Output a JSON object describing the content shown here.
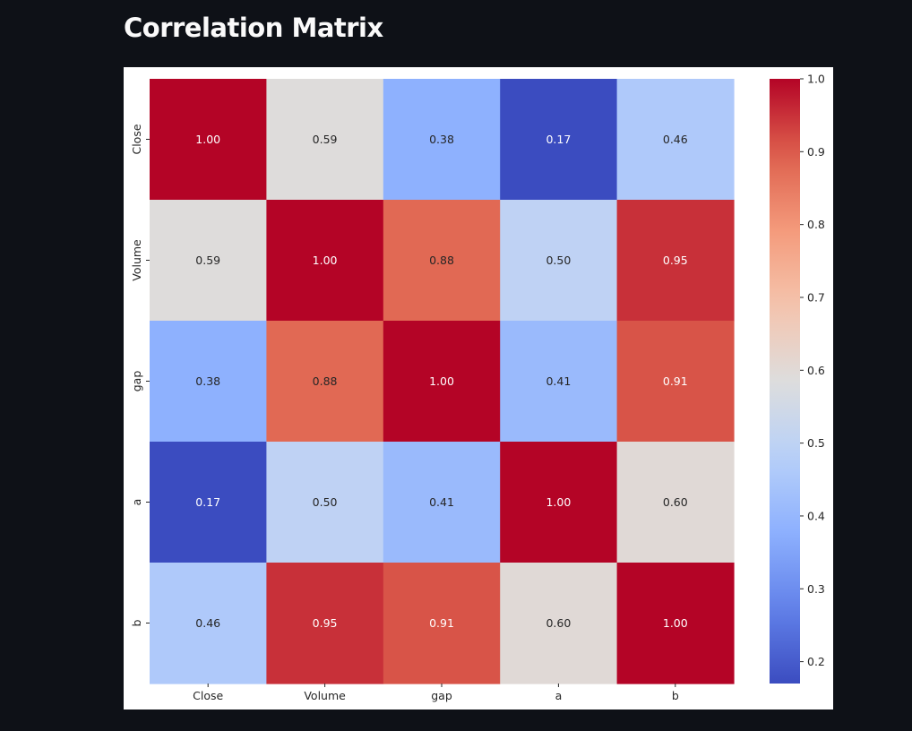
{
  "page": {
    "title": "Correlation Matrix"
  },
  "chart_data": {
    "type": "heatmap",
    "title": "",
    "xlabel": "",
    "ylabel": "",
    "x_categories": [
      "Close",
      "Volume",
      "gap",
      "a",
      "b"
    ],
    "y_categories": [
      "Close",
      "Volume",
      "gap",
      "a",
      "b"
    ],
    "values": [
      [
        1.0,
        0.59,
        0.38,
        0.17,
        0.46
      ],
      [
        0.59,
        1.0,
        0.88,
        0.5,
        0.95
      ],
      [
        0.38,
        0.88,
        1.0,
        0.41,
        0.91
      ],
      [
        0.17,
        0.5,
        0.41,
        1.0,
        0.6
      ],
      [
        0.46,
        0.95,
        0.91,
        0.6,
        1.0
      ]
    ],
    "value_labels": [
      [
        "1.00",
        "0.59",
        "0.38",
        "0.17",
        "0.46"
      ],
      [
        "0.59",
        "1.00",
        "0.88",
        "0.50",
        "0.95"
      ],
      [
        "0.38",
        "0.88",
        "1.00",
        "0.41",
        "0.91"
      ],
      [
        "0.17",
        "0.50",
        "0.41",
        "1.00",
        "0.60"
      ],
      [
        "0.46",
        "0.95",
        "0.91",
        "0.60",
        "1.00"
      ]
    ],
    "colormap": "coolwarm",
    "color_range": [
      0.17,
      1.0
    ],
    "colorbar": {
      "position": "right",
      "ticks": [
        0.2,
        0.3,
        0.4,
        0.5,
        0.6,
        0.7,
        0.8,
        0.9,
        1.0
      ],
      "tick_labels": [
        "0.2",
        "0.3",
        "0.4",
        "0.5",
        "0.6",
        "0.7",
        "0.8",
        "0.9",
        "1.0"
      ]
    },
    "legend": "none",
    "grid": false
  },
  "colors": {
    "page_background": "#0e1117",
    "chart_background": "#ffffff",
    "title_text": "#fafafa",
    "dark_annotation_text": "#262626",
    "light_annotation_text": "#ffffff"
  }
}
